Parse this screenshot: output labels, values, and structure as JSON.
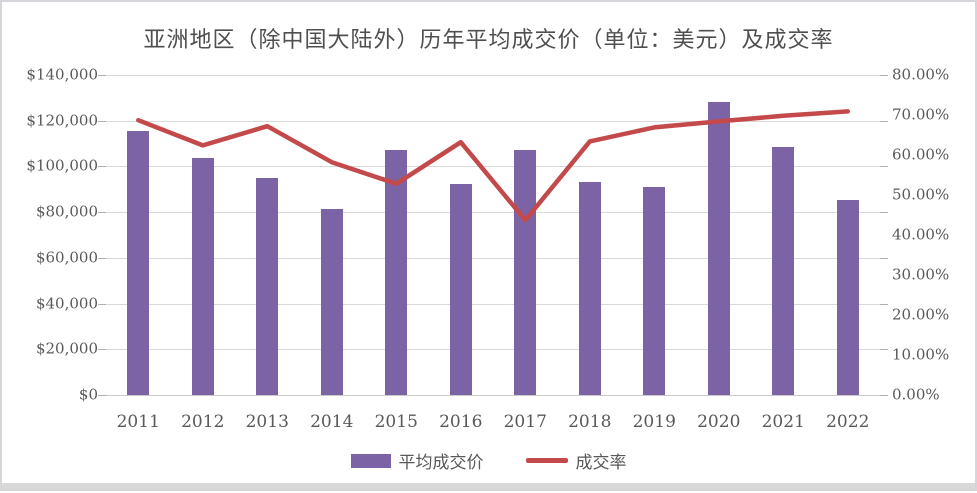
{
  "chart_data": {
    "type": "combo",
    "title": "亚洲地区（除中国大陆外）历年平均成交价（单位：美元）及成交率",
    "categories": [
      "2011",
      "2012",
      "2013",
      "2014",
      "2015",
      "2016",
      "2017",
      "2018",
      "2019",
      "2020",
      "2021",
      "2022"
    ],
    "series": [
      {
        "name": "平均成交价",
        "type": "bar",
        "axis": "left",
        "unit": "USD",
        "values": [
          115500,
          103500,
          95000,
          81200,
          107400,
          92200,
          107300,
          93000,
          91000,
          128300,
          108300,
          85500
        ]
      },
      {
        "name": "成交率",
        "type": "line",
        "axis": "right",
        "unit": "percent",
        "values": [
          68.7,
          62.4,
          67.2,
          58.2,
          52.8,
          63.2,
          43.7,
          63.4,
          66.9,
          68.4,
          69.8,
          70.9
        ]
      }
    ],
    "left_axis": {
      "min": 0,
      "max": 140000,
      "ticks": [
        "$0",
        "$20,000",
        "$40,000",
        "$60,000",
        "$80,000",
        "$100,000",
        "$120,000",
        "$140,000"
      ]
    },
    "right_axis": {
      "min": 0,
      "max": 80,
      "ticks": [
        "0.00%",
        "10.00%",
        "20.00%",
        "30.00%",
        "40.00%",
        "50.00%",
        "60.00%",
        "70.00%",
        "80.00%"
      ]
    },
    "grid": "horizontal",
    "legend_position": "bottom"
  },
  "legend": {
    "bar_label": "平均成交价",
    "line_label": "成交率"
  },
  "colors": {
    "bar": "#7C63A5",
    "line": "#C4494A",
    "gridline": "#D9D9D9",
    "axis_text": "#595959",
    "title_text": "#4F4F4F",
    "frame_border": "#D6D6DA",
    "bottom_strip": "#D9D9D9",
    "background": "#FFFFFF"
  }
}
